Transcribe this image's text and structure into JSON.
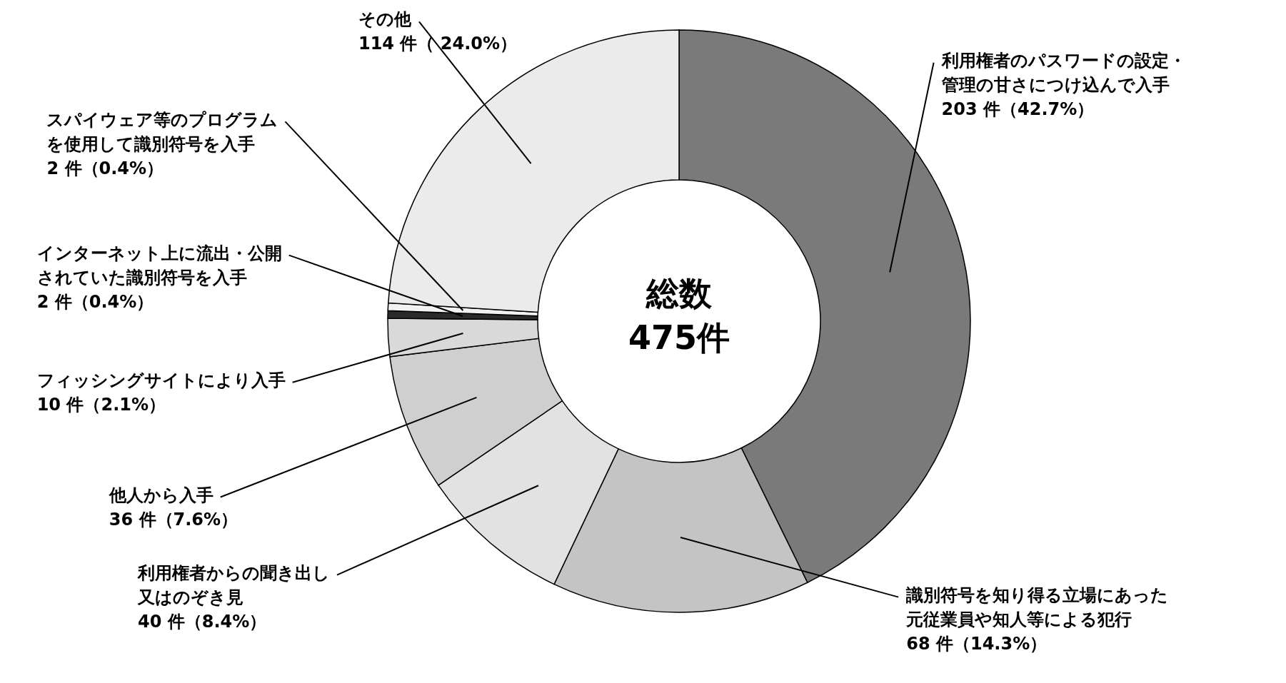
{
  "chart_data": {
    "type": "donut",
    "categories": [
      "利用権者のパスワードの設定・管理の甘さにつけ込んで入手",
      "識別符号を知り得る立場にあった元従業員や知人等による犯行",
      "利用権者からの聞き出し又はのぞき見",
      "他人から入手",
      "フィッシングサイトにより入手",
      "インターネット上に流出・公開されていた識別符号を入手",
      "スパイウェア等のプログラムを使用して識別符号を入手",
      "その他"
    ],
    "values": [
      203,
      68,
      40,
      36,
      10,
      2,
      2,
      114
    ],
    "value_labels": [
      "203 件（42.7%）",
      "68 件（14.3%）",
      "40 件（8.4%）",
      "36 件（7.6%）",
      "10 件（2.1%）",
      "2 件（0.4%）",
      "2 件（0.4%）",
      "114 件（ 24.0%）"
    ],
    "colors": [
      "#7a7a7a",
      "#c4c4c4",
      "#e2e2e2",
      "#cfcfcf",
      "#d9d9d9",
      "#2a2a2a",
      "#f2f2f2",
      "#ebebeb"
    ],
    "annotations": [
      "総数",
      "475件"
    ]
  }
}
